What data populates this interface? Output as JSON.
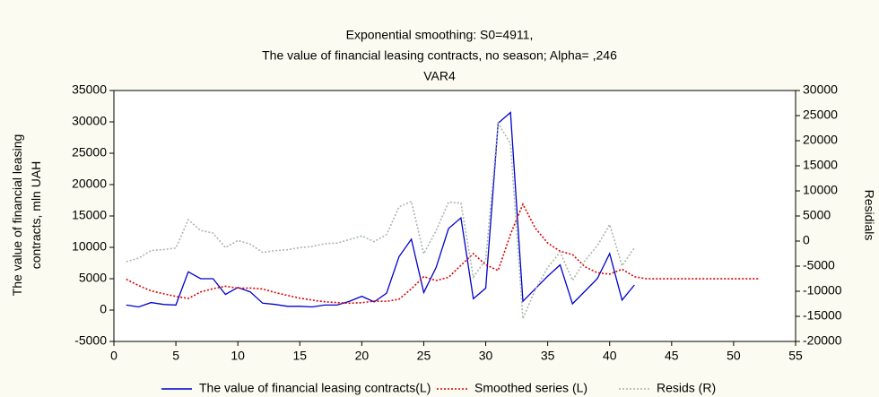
{
  "chart_data": {
    "type": "line",
    "title": "Exponential smoothing:  S0=4911,",
    "subtitle": "The value of financial leasing contracts, no season; Alpha=  ,246",
    "subtitle2": "VAR4",
    "ylabel": "The value of financial leasing contracts, mln UAH",
    "y2label": "Residials",
    "x": [
      1,
      2,
      3,
      4,
      5,
      6,
      7,
      8,
      9,
      10,
      11,
      12,
      13,
      14,
      15,
      16,
      17,
      18,
      19,
      20,
      21,
      22,
      23,
      24,
      25,
      26,
      27,
      28,
      29,
      30,
      31,
      32,
      33,
      34,
      35,
      36,
      37,
      38,
      39,
      40,
      41,
      42,
      43,
      44,
      45,
      46,
      47,
      48,
      49,
      50,
      51,
      52
    ],
    "series": [
      {
        "name": "The value of financial leasing contracts(L)",
        "color": "#0000cc",
        "dash": "solid",
        "axis": "y",
        "values": [
          800,
          500,
          1200,
          900,
          800,
          6100,
          5000,
          5000,
          2500,
          3600,
          2900,
          1100,
          900,
          600,
          600,
          500,
          800,
          800,
          1400,
          2200,
          1300,
          2700,
          8500,
          11300,
          2800,
          6800,
          13000,
          14700,
          1800,
          3500,
          29800,
          31500,
          1400,
          3400,
          5400,
          7200,
          1000,
          3000,
          5000,
          9000,
          1600,
          4000,
          null,
          null,
          null,
          null,
          null,
          null,
          null,
          null,
          null,
          null
        ]
      },
      {
        "name": "Smoothed series (L)",
        "color": "#dd0000",
        "dash": "dotted",
        "axis": "y",
        "values": [
          4911,
          3900,
          3064,
          2605,
          2186,
          1845,
          2892,
          3411,
          3802,
          3482,
          3511,
          3361,
          2805,
          2336,
          1909,
          1587,
          1320,
          1192,
          1096,
          1171,
          1424,
          1393,
          1715,
          3384,
          5331,
          4708,
          5223,
          7136,
          8997,
          7227,
          6310,
          12089,
          16864,
          13060,
          10684,
          9384,
          8847,
          6917,
          5953,
          5719,
          6526,
          5314,
          4991,
          4991,
          4991,
          4991,
          4991,
          4991,
          4991,
          4991,
          4991,
          4991
        ]
      },
      {
        "name": "Resids (R)",
        "color": "#a8b8a8",
        "dash": "dotted",
        "axis": "y2",
        "values": [
          -4111,
          -3400,
          -1864,
          -1705,
          -1386,
          4255,
          2108,
          1589,
          -1302,
          118,
          -611,
          -2261,
          -1905,
          -1736,
          -1309,
          -1087,
          -520,
          -392,
          304,
          1029,
          -124,
          1307,
          6785,
          7916,
          -2531,
          2092,
          7777,
          7564,
          -7197,
          -3727,
          23490,
          19411,
          -15464,
          -9660,
          -5284,
          -2184,
          -7847,
          -3917,
          -953,
          3281,
          -4926,
          -1314,
          null,
          null,
          null,
          null,
          null,
          null,
          null,
          null,
          null,
          null
        ]
      }
    ],
    "xlim": [
      0,
      55
    ],
    "xticks": [
      0,
      5,
      10,
      15,
      20,
      25,
      30,
      35,
      40,
      45,
      50,
      55
    ],
    "ylim": [
      -5000,
      35000
    ],
    "yticks": [
      -5000,
      0,
      5000,
      10000,
      15000,
      20000,
      25000,
      30000,
      35000
    ],
    "y2lim": [
      -20000,
      30000
    ],
    "y2ticks": [
      -20000,
      -15000,
      -10000,
      -5000,
      0,
      5000,
      10000,
      15000,
      20000,
      25000,
      30000
    ],
    "grid": false,
    "legend": "bottom"
  }
}
